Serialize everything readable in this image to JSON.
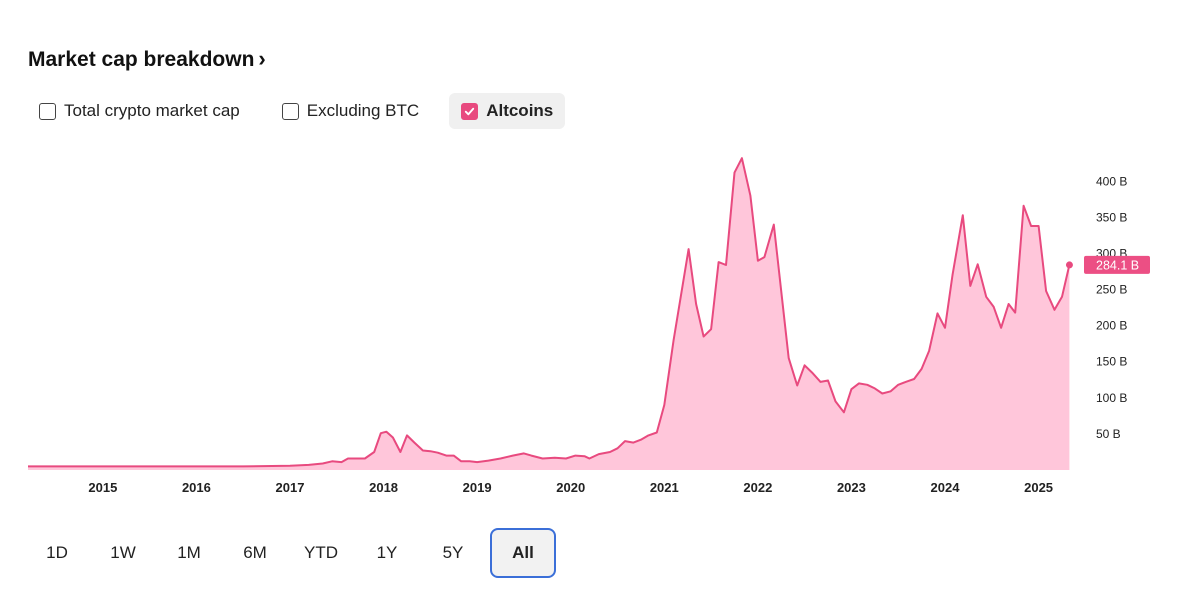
{
  "header": {
    "title": "Market cap breakdown",
    "chevron": "›"
  },
  "filters": [
    {
      "label": "Total crypto market cap",
      "checked": false
    },
    {
      "label": "Excluding BTC",
      "checked": false
    },
    {
      "label": "Altcoins",
      "checked": true
    }
  ],
  "ranges": [
    {
      "label": "1D",
      "active": false
    },
    {
      "label": "1W",
      "active": false
    },
    {
      "label": "1M",
      "active": false
    },
    {
      "label": "6M",
      "active": false
    },
    {
      "label": "YTD",
      "active": false
    },
    {
      "label": "1Y",
      "active": false
    },
    {
      "label": "5Y",
      "active": false
    },
    {
      "label": "All",
      "active": true
    }
  ],
  "colors": {
    "line": "#e84a7f",
    "area": "#ffc6da",
    "badge": "#ec4f84",
    "active_border": "#3b6fd8"
  },
  "chart_data": {
    "type": "area",
    "title": "",
    "xlabel": "",
    "ylabel": "",
    "x_tick_labels": [
      "2015",
      "2016",
      "2017",
      "2018",
      "2019",
      "2020",
      "2021",
      "2022",
      "2023",
      "2024",
      "2025"
    ],
    "y_tick_labels": [
      "50 B",
      "100 B",
      "150 B",
      "200 B",
      "250 B",
      "300 B",
      "350 B",
      "400 B"
    ],
    "y_ticks": [
      50,
      100,
      150,
      200,
      250,
      300,
      350,
      400
    ],
    "xlim": [
      2014.2,
      2025.4
    ],
    "ylim": [
      0,
      435
    ],
    "current_value_label": "284.1 B",
    "current_value": 284.1,
    "series": [
      {
        "points": [
          [
            2014.2,
            5
          ],
          [
            2015.0,
            5
          ],
          [
            2016.0,
            5
          ],
          [
            2016.5,
            5
          ],
          [
            2017.0,
            6
          ],
          [
            2017.2,
            7
          ],
          [
            2017.35,
            9
          ],
          [
            2017.45,
            12
          ],
          [
            2017.55,
            11
          ],
          [
            2017.62,
            16
          ],
          [
            2017.8,
            16
          ],
          [
            2017.9,
            25
          ],
          [
            2017.97,
            51
          ],
          [
            2018.03,
            53
          ],
          [
            2018.1,
            45
          ],
          [
            2018.18,
            25
          ],
          [
            2018.25,
            48
          ],
          [
            2018.33,
            38
          ],
          [
            2018.42,
            27
          ],
          [
            2018.5,
            26
          ],
          [
            2018.58,
            24
          ],
          [
            2018.67,
            20
          ],
          [
            2018.75,
            20
          ],
          [
            2018.83,
            12
          ],
          [
            2018.92,
            12
          ],
          [
            2019.0,
            11
          ],
          [
            2019.12,
            13
          ],
          [
            2019.25,
            16
          ],
          [
            2019.38,
            20
          ],
          [
            2019.5,
            23
          ],
          [
            2019.58,
            20
          ],
          [
            2019.7,
            16
          ],
          [
            2019.83,
            17
          ],
          [
            2019.95,
            16
          ],
          [
            2020.05,
            20
          ],
          [
            2020.15,
            19
          ],
          [
            2020.2,
            16
          ],
          [
            2020.3,
            22
          ],
          [
            2020.42,
            25
          ],
          [
            2020.5,
            30
          ],
          [
            2020.58,
            40
          ],
          [
            2020.67,
            38
          ],
          [
            2020.75,
            42
          ],
          [
            2020.83,
            48
          ],
          [
            2020.92,
            52
          ],
          [
            2021.0,
            90
          ],
          [
            2021.1,
            180
          ],
          [
            2021.26,
            306
          ],
          [
            2021.34,
            230
          ],
          [
            2021.42,
            185
          ],
          [
            2021.5,
            195
          ],
          [
            2021.58,
            288
          ],
          [
            2021.66,
            284
          ],
          [
            2021.75,
            412
          ],
          [
            2021.83,
            432
          ],
          [
            2021.92,
            380
          ],
          [
            2022.0,
            290
          ],
          [
            2022.07,
            295
          ],
          [
            2022.17,
            340
          ],
          [
            2022.33,
            155
          ],
          [
            2022.42,
            117
          ],
          [
            2022.5,
            145
          ],
          [
            2022.58,
            135
          ],
          [
            2022.67,
            122
          ],
          [
            2022.75,
            124
          ],
          [
            2022.83,
            95
          ],
          [
            2022.92,
            80
          ],
          [
            2023.0,
            112
          ],
          [
            2023.08,
            120
          ],
          [
            2023.17,
            118
          ],
          [
            2023.25,
            113
          ],
          [
            2023.33,
            106
          ],
          [
            2023.42,
            109
          ],
          [
            2023.5,
            118
          ],
          [
            2023.58,
            122
          ],
          [
            2023.67,
            126
          ],
          [
            2023.75,
            140
          ],
          [
            2023.83,
            165
          ],
          [
            2023.92,
            217
          ],
          [
            2024.0,
            197
          ],
          [
            2024.08,
            270
          ],
          [
            2024.19,
            353
          ],
          [
            2024.27,
            255
          ],
          [
            2024.35,
            285
          ],
          [
            2024.44,
            240
          ],
          [
            2024.52,
            226
          ],
          [
            2024.6,
            197
          ],
          [
            2024.68,
            230
          ],
          [
            2024.75,
            218
          ],
          [
            2024.84,
            366
          ],
          [
            2024.92,
            338
          ],
          [
            2025.0,
            338
          ],
          [
            2025.08,
            248
          ],
          [
            2025.17,
            222
          ],
          [
            2025.25,
            240
          ],
          [
            2025.33,
            284.1
          ]
        ]
      }
    ]
  }
}
